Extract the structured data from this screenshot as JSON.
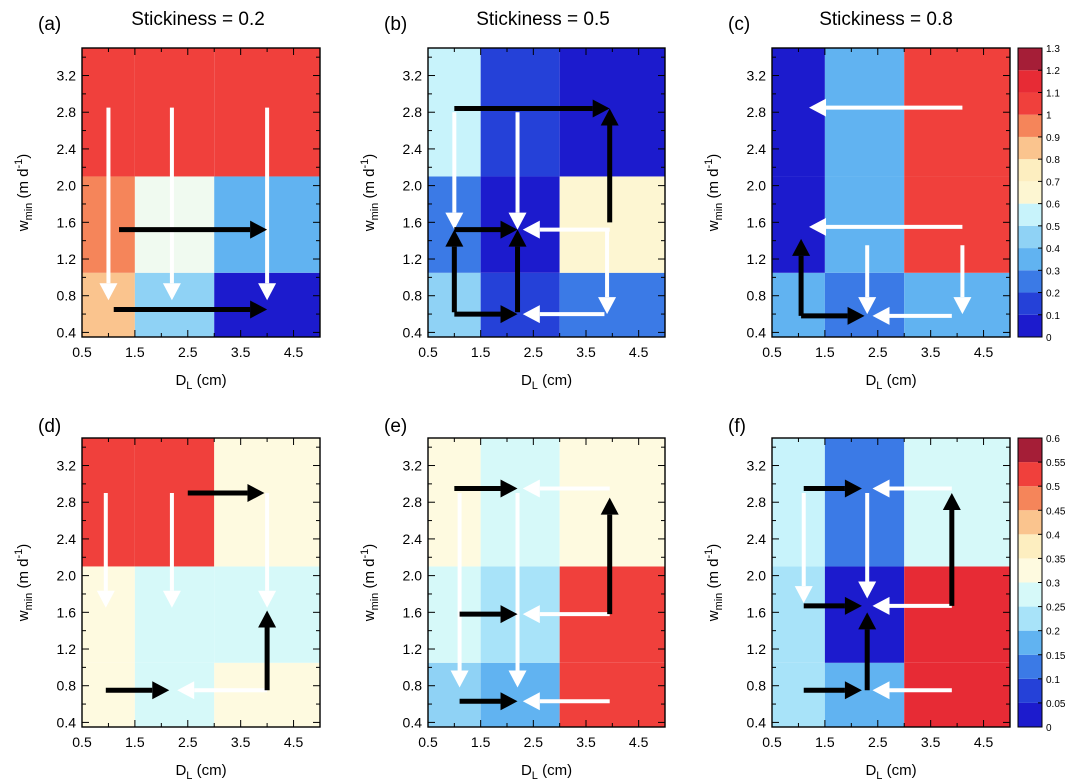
{
  "column_titles": [
    "Stickiness = 0.2",
    "Stickiness = 0.5",
    "Stickiness = 0.8"
  ],
  "panel_labels": [
    "(a)",
    "(b)",
    "(c)",
    "(d)",
    "(e)",
    "(f)"
  ],
  "colors": {
    "red": "#f0403c",
    "orange": "#f5855a",
    "peach": "#fac48e",
    "cream": "#fdf6d2",
    "lightcream": "#fefae0",
    "nearwhite": "#f0faf0",
    "verylightcyan": "#d6f9f9",
    "lightcyan": "#c8f3fb",
    "skyblue": "#a8e3f9",
    "lightblue": "#8fd2f5",
    "midblue": "#61b3f1",
    "blue": "#3b7ae6",
    "darkblue": "#2541d8",
    "navy": "#1c1bcd",
    "red2": "#e72b35"
  },
  "chart_data": [
    {
      "type": "heatmap",
      "panel": "(a)",
      "title": "Stickiness = 0.2",
      "xlabel": "D_L (cm)",
      "ylabel": "w_min (m d^-1)",
      "x_edges": [
        0.5,
        1.5,
        3,
        5
      ],
      "y_edges": [
        0.35,
        1.05,
        2.1,
        3.5
      ],
      "xticks": [
        "0.5",
        "1.5",
        "2.5",
        "3.5",
        "4.5"
      ],
      "yticks": [
        "0.4",
        "0.8",
        "1.2",
        "1.6",
        "2.0",
        "2.4",
        "2.8",
        "3.2"
      ],
      "cells": [
        [
          "peach",
          "lightblue",
          "navy"
        ],
        [
          "orange",
          "nearwhite",
          "midblue"
        ],
        [
          "red",
          "red",
          "red"
        ]
      ],
      "arrows": [
        {
          "from": [
            1.0,
            2.85
          ],
          "to": [
            1.0,
            0.75
          ],
          "color": "white"
        },
        {
          "from": [
            2.2,
            2.85
          ],
          "to": [
            2.2,
            0.75
          ],
          "color": "white"
        },
        {
          "from": [
            4.0,
            2.85
          ],
          "to": [
            4.0,
            0.75
          ],
          "color": "white"
        },
        {
          "from": [
            1.2,
            1.52
          ],
          "to": [
            4.0,
            1.52
          ],
          "color": "black"
        },
        {
          "from": [
            1.1,
            0.65
          ],
          "to": [
            4.0,
            0.65
          ],
          "color": "black"
        }
      ]
    },
    {
      "type": "heatmap",
      "panel": "(b)",
      "title": "Stickiness = 0.5",
      "xlabel": "D_L (cm)",
      "ylabel": "w_min (m d^-1)",
      "x_edges": [
        0.5,
        1.5,
        3,
        5
      ],
      "y_edges": [
        0.35,
        1.05,
        2.1,
        3.5
      ],
      "xticks": [
        "0.5",
        "1.5",
        "2.5",
        "3.5",
        "4.5"
      ],
      "yticks": [
        "0.4",
        "0.8",
        "1.2",
        "1.6",
        "2.0",
        "2.4",
        "2.8",
        "3.2"
      ],
      "cells": [
        [
          "lightblue",
          "darkblue",
          "blue"
        ],
        [
          "blue",
          "navy",
          "cream"
        ],
        [
          "lightcyan",
          "darkblue",
          "navy"
        ]
      ],
      "arrows": [
        {
          "from": [
            1.0,
            2.8
          ],
          "to": [
            1.0,
            1.52
          ],
          "color": "white"
        },
        {
          "from": [
            2.2,
            2.8
          ],
          "to": [
            2.2,
            1.52
          ],
          "color": "white"
        },
        {
          "from": [
            3.95,
            1.52
          ],
          "to": [
            2.3,
            1.52
          ],
          "color": "white"
        },
        {
          "from": [
            3.9,
            1.5
          ],
          "to": [
            3.9,
            0.6
          ],
          "color": "white"
        },
        {
          "from": [
            3.85,
            0.6
          ],
          "to": [
            2.3,
            0.6
          ],
          "color": "white"
        },
        {
          "from": [
            1.0,
            2.84
          ],
          "to": [
            3.95,
            2.84
          ],
          "color": "black"
        },
        {
          "from": [
            3.95,
            1.6
          ],
          "to": [
            3.95,
            2.84
          ],
          "color": "black"
        },
        {
          "from": [
            1.0,
            1.52
          ],
          "to": [
            2.2,
            1.52
          ],
          "color": "black"
        },
        {
          "from": [
            1.0,
            0.62
          ],
          "to": [
            1.0,
            1.52
          ],
          "color": "black"
        },
        {
          "from": [
            2.2,
            0.62
          ],
          "to": [
            2.2,
            1.52
          ],
          "color": "black"
        },
        {
          "from": [
            1.0,
            0.6
          ],
          "to": [
            2.2,
            0.6
          ],
          "color": "black"
        }
      ]
    },
    {
      "type": "heatmap",
      "panel": "(c)",
      "title": "Stickiness = 0.8",
      "xlabel": "D_L (cm)",
      "ylabel": "w_min (m d^-1)",
      "x_edges": [
        0.5,
        1.5,
        3,
        5
      ],
      "y_edges": [
        0.35,
        1.05,
        2.1,
        3.5
      ],
      "xticks": [
        "0.5",
        "1.5",
        "2.5",
        "3.5",
        "4.5"
      ],
      "yticks": [
        "0.4",
        "0.8",
        "1.2",
        "1.6",
        "2.0",
        "2.4",
        "2.8",
        "3.2"
      ],
      "cells": [
        [
          "midblue",
          "blue",
          "midblue"
        ],
        [
          "navy",
          "midblue",
          "red"
        ],
        [
          "navy",
          "midblue",
          "red"
        ]
      ],
      "arrows": [
        {
          "from": [
            4.1,
            2.85
          ],
          "to": [
            1.2,
            2.85
          ],
          "color": "white"
        },
        {
          "from": [
            4.1,
            1.55
          ],
          "to": [
            1.2,
            1.55
          ],
          "color": "white"
        },
        {
          "from": [
            2.3,
            1.35
          ],
          "to": [
            2.3,
            0.6
          ],
          "color": "white"
        },
        {
          "from": [
            4.1,
            1.35
          ],
          "to": [
            4.1,
            0.6
          ],
          "color": "white"
        },
        {
          "from": [
            3.9,
            0.58
          ],
          "to": [
            2.4,
            0.58
          ],
          "color": "white"
        },
        {
          "from": [
            1.05,
            0.58
          ],
          "to": [
            1.05,
            1.42
          ],
          "color": "black"
        },
        {
          "from": [
            1.05,
            0.58
          ],
          "to": [
            2.25,
            0.58
          ],
          "color": "black"
        }
      ]
    },
    {
      "type": "heatmap",
      "panel": "(d)",
      "title": "",
      "xlabel": "D_L (cm)",
      "ylabel": "w_min (m d^-1)",
      "x_edges": [
        0.5,
        1.5,
        3,
        5
      ],
      "y_edges": [
        0.35,
        1.05,
        2.1,
        3.5
      ],
      "xticks": [
        "0.5",
        "1.5",
        "2.5",
        "3.5",
        "4.5"
      ],
      "yticks": [
        "0.4",
        "0.8",
        "1.2",
        "1.6",
        "2.0",
        "2.4",
        "2.8",
        "3.2"
      ],
      "cells": [
        [
          "lightcream",
          "verylightcyan",
          "lightcream"
        ],
        [
          "lightcream",
          "verylightcyan",
          "verylightcyan"
        ],
        [
          "red",
          "red",
          "lightcream"
        ]
      ],
      "arrows": [
        {
          "from": [
            0.95,
            2.9
          ],
          "to": [
            0.95,
            1.65
          ],
          "color": "white"
        },
        {
          "from": [
            2.2,
            2.9
          ],
          "to": [
            2.2,
            1.65
          ],
          "color": "white"
        },
        {
          "from": [
            4.0,
            2.9
          ],
          "to": [
            4.0,
            1.65
          ],
          "color": "white"
        },
        {
          "from": [
            4.0,
            0.75
          ],
          "to": [
            2.3,
            0.75
          ],
          "color": "white"
        },
        {
          "from": [
            2.5,
            2.9
          ],
          "to": [
            3.95,
            2.9
          ],
          "color": "black"
        },
        {
          "from": [
            4.0,
            0.75
          ],
          "to": [
            4.0,
            1.62
          ],
          "color": "black"
        },
        {
          "from": [
            0.95,
            0.75
          ],
          "to": [
            2.15,
            0.75
          ],
          "color": "black"
        }
      ]
    },
    {
      "type": "heatmap",
      "panel": "(e)",
      "title": "",
      "xlabel": "D_L (cm)",
      "ylabel": "w_min (m d^-1)",
      "x_edges": [
        0.5,
        1.5,
        3,
        5
      ],
      "y_edges": [
        0.35,
        1.05,
        2.1,
        3.5
      ],
      "xticks": [
        "0.5",
        "1.5",
        "2.5",
        "3.5",
        "4.5"
      ],
      "yticks": [
        "0.4",
        "0.8",
        "1.2",
        "1.6",
        "2.0",
        "2.4",
        "2.8",
        "3.2"
      ],
      "cells": [
        [
          "lightblue",
          "midblue",
          "red"
        ],
        [
          "verylightcyan",
          "skyblue",
          "red"
        ],
        [
          "lightcream",
          "verylightcyan",
          "lightcream"
        ]
      ],
      "arrows": [
        {
          "from": [
            1.1,
            2.9
          ],
          "to": [
            1.1,
            0.78
          ],
          "color": "white"
        },
        {
          "from": [
            2.2,
            2.9
          ],
          "to": [
            2.2,
            0.78
          ],
          "color": "white"
        },
        {
          "from": [
            3.95,
            2.95
          ],
          "to": [
            2.3,
            2.95
          ],
          "color": "white"
        },
        {
          "from": [
            3.95,
            1.58
          ],
          "to": [
            2.3,
            1.58
          ],
          "color": "white"
        },
        {
          "from": [
            3.95,
            0.63
          ],
          "to": [
            2.3,
            0.63
          ],
          "color": "white"
        },
        {
          "from": [
            1.0,
            2.95
          ],
          "to": [
            2.2,
            2.95
          ],
          "color": "black"
        },
        {
          "from": [
            3.95,
            1.58
          ],
          "to": [
            3.95,
            2.85
          ],
          "color": "black"
        },
        {
          "from": [
            1.1,
            1.58
          ],
          "to": [
            2.2,
            1.58
          ],
          "color": "black"
        },
        {
          "from": [
            1.1,
            0.63
          ],
          "to": [
            2.2,
            0.63
          ],
          "color": "black"
        }
      ]
    },
    {
      "type": "heatmap",
      "panel": "(f)",
      "title": "",
      "xlabel": "D_L (cm)",
      "ylabel": "w_min (m d^-1)",
      "x_edges": [
        0.5,
        1.5,
        3,
        5
      ],
      "y_edges": [
        0.35,
        1.05,
        2.1,
        3.5
      ],
      "xticks": [
        "0.5",
        "1.5",
        "2.5",
        "3.5",
        "4.5"
      ],
      "yticks": [
        "0.4",
        "0.8",
        "1.2",
        "1.6",
        "2.0",
        "2.4",
        "2.8",
        "3.2"
      ],
      "cells": [
        [
          "skyblue",
          "midblue",
          "red2"
        ],
        [
          "skyblue",
          "navy",
          "red2"
        ],
        [
          "lightcyan",
          "blue",
          "verylightcyan"
        ]
      ],
      "arrows": [
        {
          "from": [
            1.1,
            2.9
          ],
          "to": [
            1.1,
            1.7
          ],
          "color": "white"
        },
        {
          "from": [
            2.3,
            2.9
          ],
          "to": [
            2.3,
            1.75
          ],
          "color": "white"
        },
        {
          "from": [
            3.9,
            2.95
          ],
          "to": [
            2.4,
            2.95
          ],
          "color": "white"
        },
        {
          "from": [
            3.9,
            1.67
          ],
          "to": [
            2.4,
            1.67
          ],
          "color": "white"
        },
        {
          "from": [
            3.9,
            0.75
          ],
          "to": [
            2.4,
            0.75
          ],
          "color": "white"
        },
        {
          "from": [
            1.1,
            2.95
          ],
          "to": [
            2.2,
            2.95
          ],
          "color": "black"
        },
        {
          "from": [
            3.9,
            1.67
          ],
          "to": [
            3.9,
            2.9
          ],
          "color": "black"
        },
        {
          "from": [
            1.1,
            1.67
          ],
          "to": [
            2.2,
            1.67
          ],
          "color": "black"
        },
        {
          "from": [
            2.3,
            0.75
          ],
          "to": [
            2.3,
            1.6
          ],
          "color": "black"
        },
        {
          "from": [
            1.1,
            0.75
          ],
          "to": [
            2.2,
            0.75
          ],
          "color": "black"
        }
      ]
    }
  ],
  "colorbars": [
    {
      "ticks": [
        "0",
        "0.1",
        "0.2",
        "0.3",
        "0.4",
        "0.5",
        "0.6",
        "0.7",
        "0.8",
        "0.9",
        "1",
        "1.1",
        "1.2",
        "1.3"
      ],
      "bins": [
        "#1c1bcd",
        "#2541d8",
        "#3b7ae6",
        "#61b3f1",
        "#8fd2f5",
        "#c8f3fb",
        "#fdf6d2",
        "#fdeec0",
        "#fac48e",
        "#f5855a",
        "#f0403c",
        "#e72b35",
        "#a51e37"
      ]
    },
    {
      "ticks": [
        "0",
        "0.05",
        "0.1",
        "0.15",
        "0.2",
        "0.25",
        "0.3",
        "0.35",
        "0.4",
        "0.45",
        "0.5",
        "0.55",
        "0.6"
      ],
      "bins": [
        "#1c1bcd",
        "#2541d8",
        "#3b7ae6",
        "#61b3f1",
        "#a8e3f9",
        "#d6f9f9",
        "#fefae0",
        "#fdeec0",
        "#fac48e",
        "#f5855a",
        "#f0403c",
        "#a51e37"
      ]
    }
  ]
}
